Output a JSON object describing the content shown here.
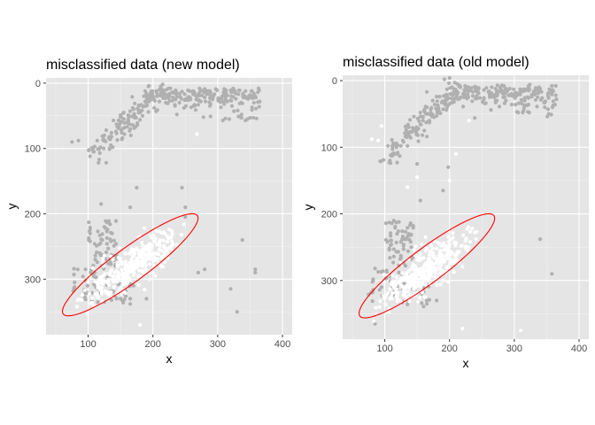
{
  "chart_data": [
    {
      "type": "scatter",
      "title": "misclassified data (new model)",
      "xlabel": "x",
      "ylabel": "y",
      "xlim": [
        35,
        415
      ],
      "ylim": [
        385,
        -8
      ],
      "y_reversed": true,
      "xticks": [
        100,
        200,
        300,
        400
      ],
      "yticks": [
        0,
        100,
        200,
        300
      ],
      "grid": true,
      "background": "#e5e5e5",
      "series": [
        {
          "color": "#b0b0b0",
          "points": []
        },
        {
          "color": "#ffffff",
          "points": []
        }
      ],
      "ellipse": {
        "color": "#ff0000",
        "center": [
          165,
          278
        ],
        "semi_major": 128,
        "semi_minor": 26,
        "angle_deg": 36
      }
    },
    {
      "type": "scatter",
      "title": "misclassified data (old model)",
      "xlabel": "x",
      "ylabel": "y",
      "xlim": [
        35,
        415
      ],
      "ylim": [
        388,
        -8
      ],
      "y_reversed": true,
      "xticks": [
        100,
        200,
        300,
        400
      ],
      "yticks": [
        0,
        100,
        200,
        300
      ],
      "grid": true,
      "background": "#e5e5e5",
      "series": [
        {
          "color": "#b0b0b0",
          "points": []
        },
        {
          "color": "#ffffff",
          "points": []
        }
      ],
      "ellipse": {
        "color": "#ff0000",
        "center": [
          165,
          278
        ],
        "semi_major": 128,
        "semi_minor": 26,
        "angle_deg": 36
      }
    }
  ]
}
